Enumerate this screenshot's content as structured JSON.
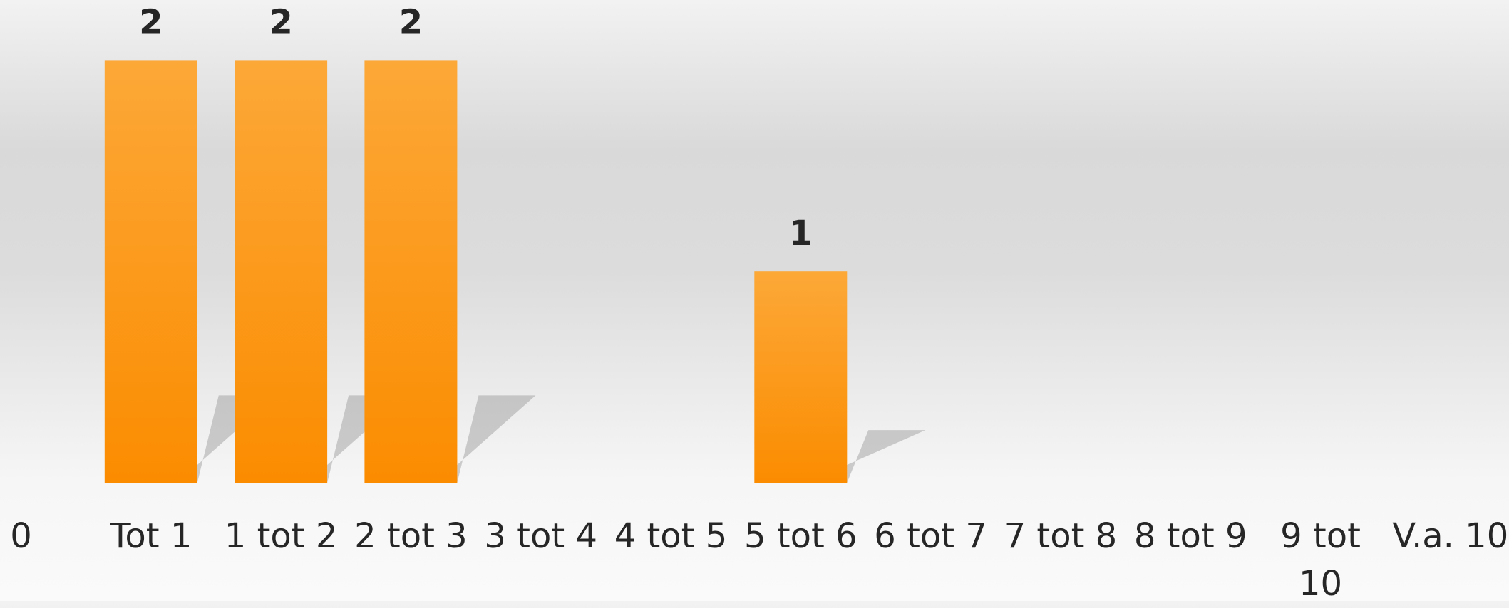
{
  "chart_data": {
    "type": "bar",
    "categories": [
      "0",
      "Tot 1",
      "1 tot 2",
      "2 tot 3",
      "3 tot 4",
      "4 tot 5",
      "5 tot 6",
      "6 tot 7",
      "7 tot 8",
      "8 tot 9",
      "9 tot 10",
      "V.a. 10"
    ],
    "values": [
      null,
      2,
      2,
      2,
      null,
      null,
      1,
      null,
      null,
      null,
      null,
      null
    ],
    "color": "#fb9a1c"
  }
}
